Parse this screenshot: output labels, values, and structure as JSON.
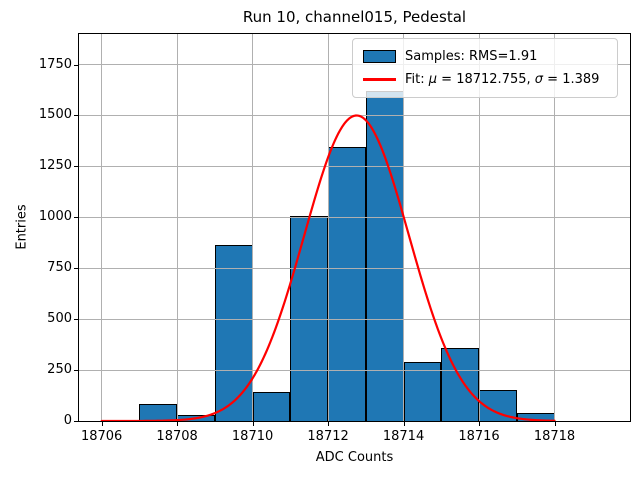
{
  "figure": {
    "title": "Run 10, channel015, Pedestal"
  },
  "chart_data": {
    "type": "bar",
    "subtype": "histogram-with-gaussian-fit",
    "title": "Run 10, channel015, Pedestal",
    "xlabel": "ADC Counts",
    "ylabel": "Entries",
    "xlim": [
      18705.4,
      18720.0
    ],
    "ylim": [
      0,
      1900
    ],
    "xticks": [
      18706,
      18708,
      18710,
      18712,
      18714,
      18716,
      18718
    ],
    "xtick_labels": [
      "18706",
      "18708",
      "18710",
      "18712",
      "18714",
      "18716",
      "18718"
    ],
    "yticks": [
      0,
      250,
      500,
      750,
      1000,
      1250,
      1500,
      1750
    ],
    "ytick_labels": [
      "0",
      "250",
      "500",
      "750",
      "1000",
      "1250",
      "1500",
      "1750"
    ],
    "grid": true,
    "grid_color": "#b0b0b0",
    "bar_color": "#1f77b4",
    "bar_edge_color": "#000000",
    "bins": [
      {
        "x0": 18707,
        "x1": 18708,
        "count": 85
      },
      {
        "x0": 18708,
        "x1": 18709,
        "count": 30
      },
      {
        "x0": 18709,
        "x1": 18710,
        "count": 865
      },
      {
        "x0": 18710,
        "x1": 18711,
        "count": 140
      },
      {
        "x0": 18711,
        "x1": 18712,
        "count": 1005
      },
      {
        "x0": 18712,
        "x1": 18713,
        "count": 1345
      },
      {
        "x0": 18713,
        "x1": 18714,
        "count": 1620
      },
      {
        "x0": 18714,
        "x1": 18715,
        "count": 290
      },
      {
        "x0": 18715,
        "x1": 18716,
        "count": 360
      },
      {
        "x0": 18716,
        "x1": 18717,
        "count": 150
      },
      {
        "x0": 18717,
        "x1": 18718,
        "count": 40
      }
    ],
    "fit": {
      "mu": 18712.755,
      "sigma": 1.389,
      "amplitude": 1500,
      "x_start": 18706,
      "x_end": 18718,
      "color": "#ff0000"
    },
    "legend": {
      "position": "upper right",
      "entries": [
        {
          "handle": "patch",
          "label_parts": [
            {
              "t": "Samples: RMS=1.91"
            }
          ]
        },
        {
          "handle": "line",
          "label_parts": [
            {
              "t": "Fit: "
            },
            {
              "t": "μ",
              "i": true
            },
            {
              "t": " = 18712.755, "
            },
            {
              "t": "σ",
              "i": true
            },
            {
              "t": " = 1.389"
            }
          ]
        }
      ]
    }
  }
}
